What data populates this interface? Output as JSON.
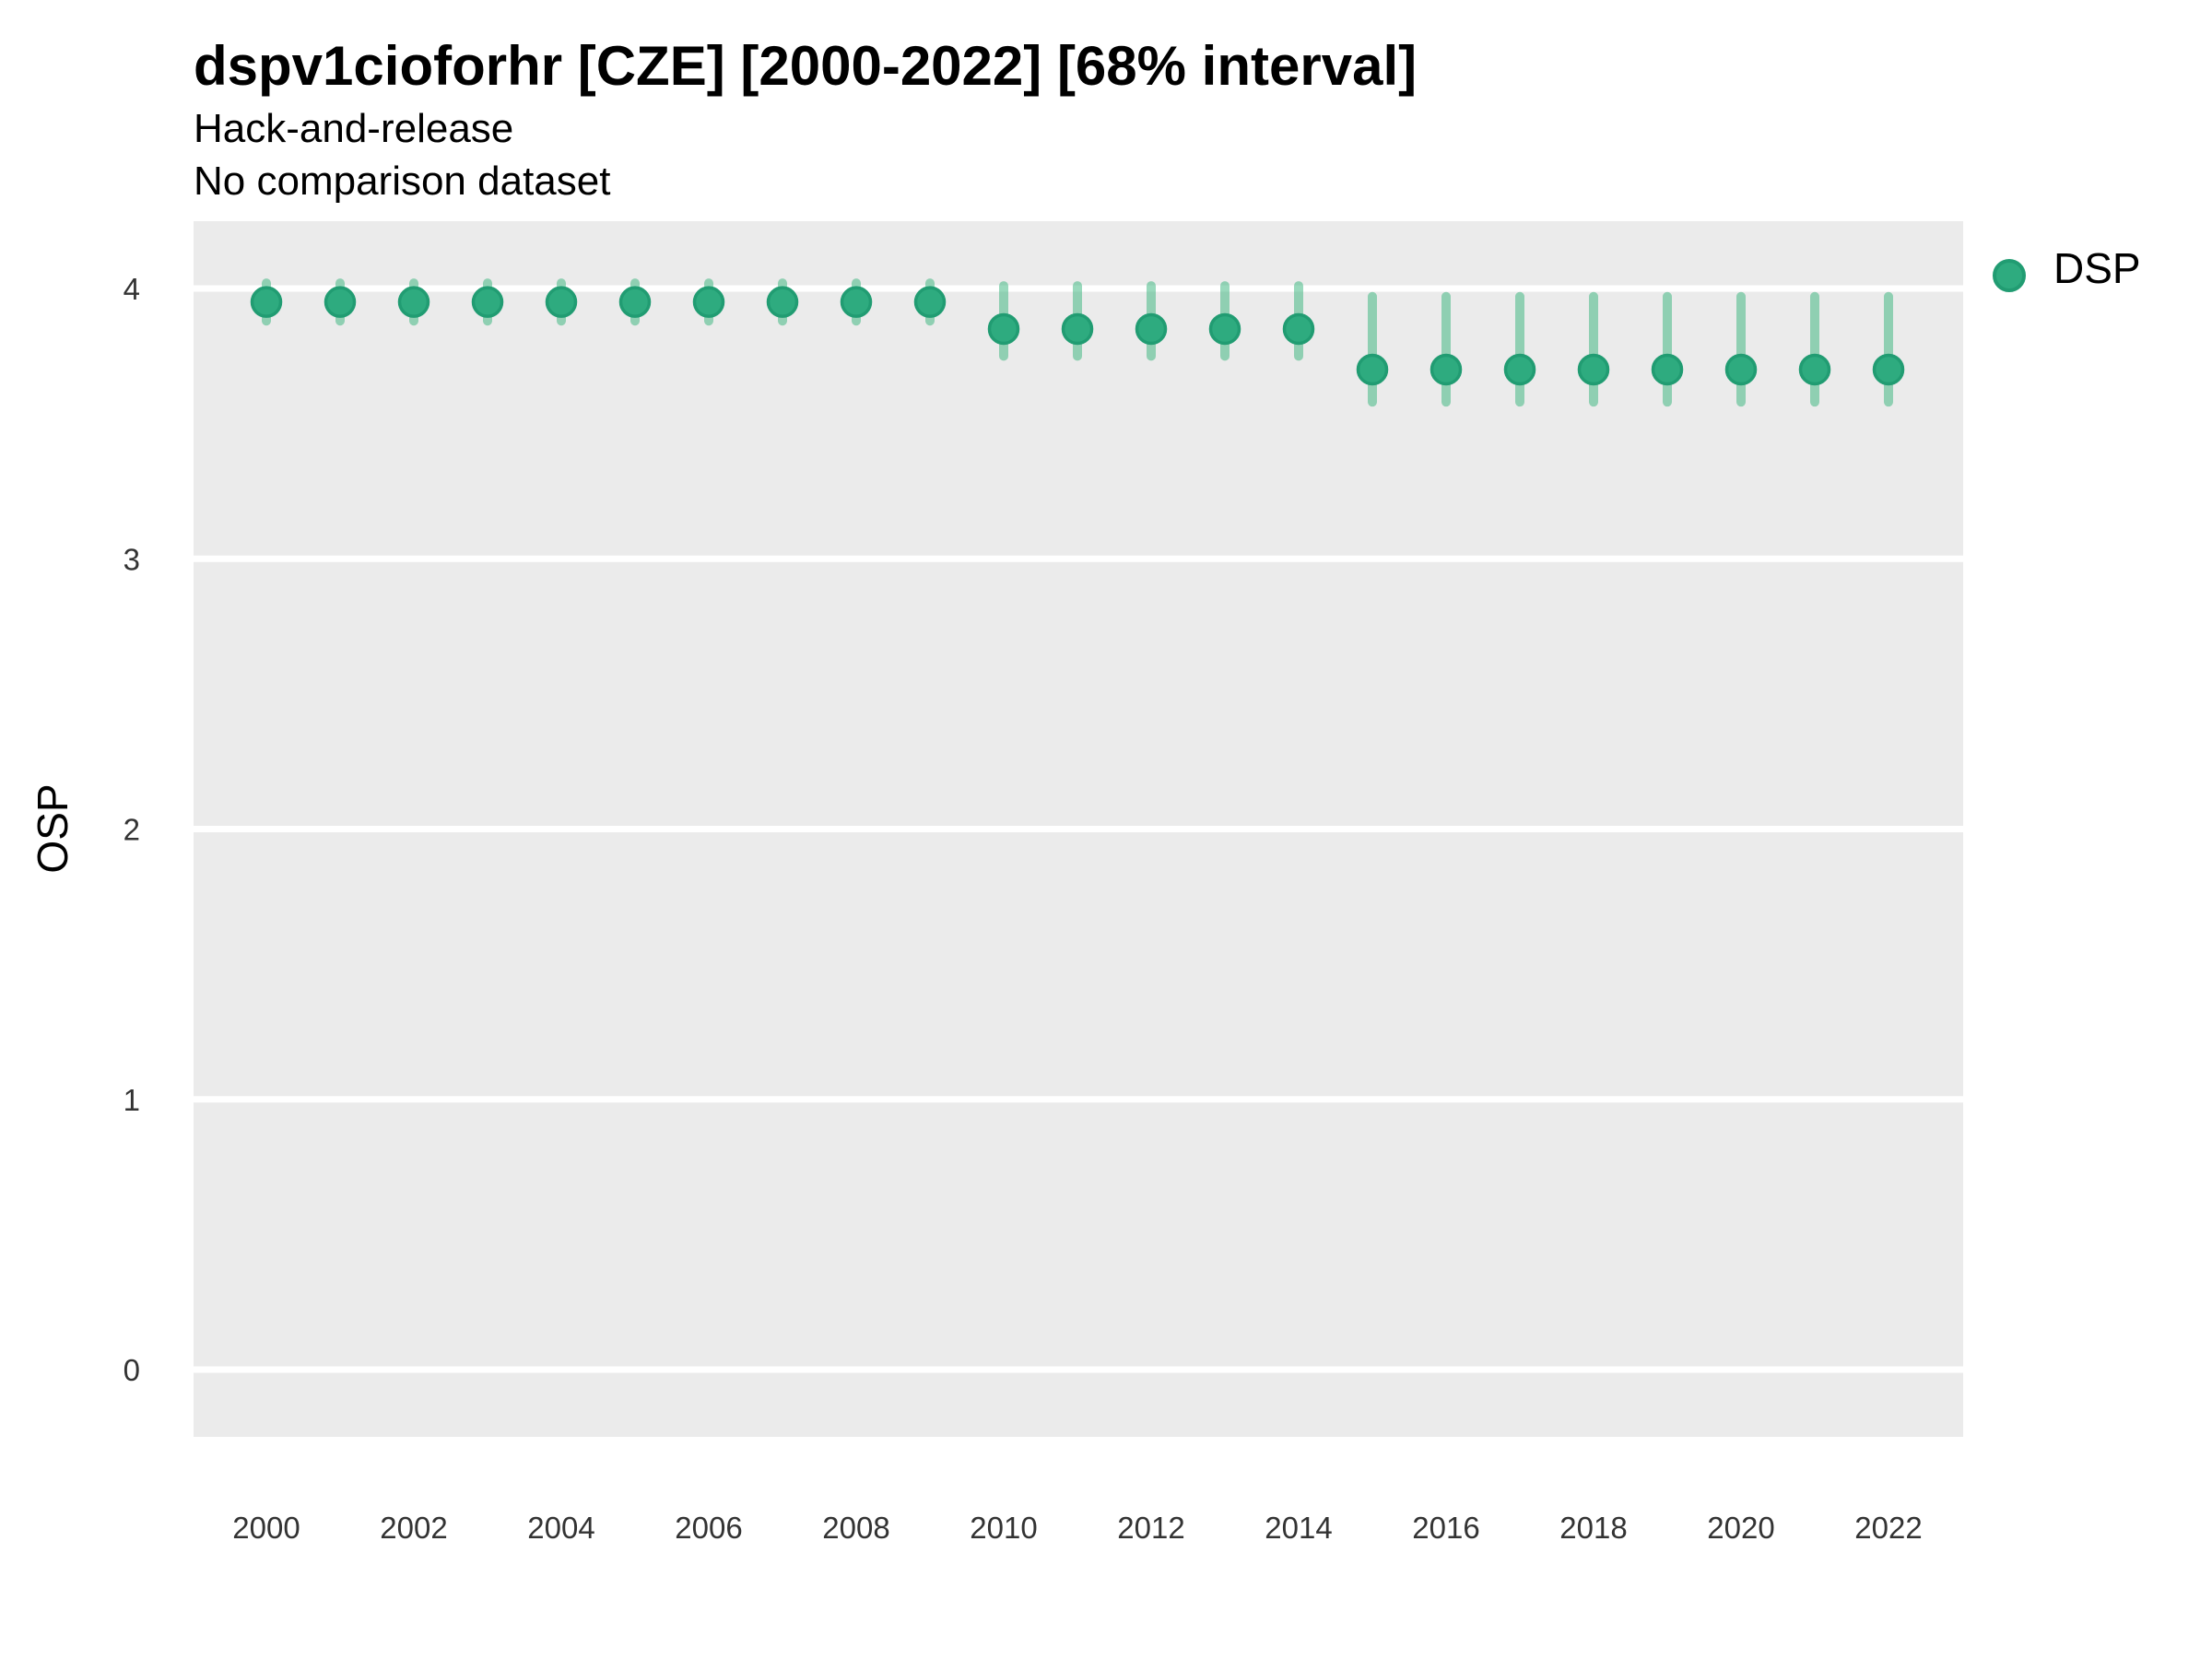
{
  "chart_data": {
    "type": "scatter",
    "variant": "pointrange-interval",
    "title": "dspv1cioforhr [CZE] [2000-2022] [68% interval]",
    "subtitle_lines": [
      "Hack-and-release",
      "No comparison dataset"
    ],
    "ylabel": "OSP",
    "xlabel": "",
    "ylim": [
      -0.25,
      4.25
    ],
    "xlim": [
      1999,
      2023
    ],
    "y_ticks": [
      0,
      1,
      2,
      3,
      4
    ],
    "x_ticks": [
      2000,
      2002,
      2004,
      2006,
      2008,
      2010,
      2012,
      2014,
      2016,
      2018,
      2020,
      2022
    ],
    "grid": "horizontal major gridlines only, white on gray panel",
    "legend_position": "right",
    "panel_bg": "#EBEBEB",
    "gridline_color": "#FFFFFF",
    "tick_label_color": "#333333",
    "series": [
      {
        "name": "DSP",
        "point_fill": "#2EAB7F",
        "point_stroke": "#219C72",
        "interval_color": "rgba(51,179,121,0.5)",
        "x": [
          2000,
          2001,
          2002,
          2003,
          2004,
          2005,
          2006,
          2007,
          2008,
          2009,
          2010,
          2011,
          2012,
          2013,
          2014,
          2015,
          2016,
          2017,
          2018,
          2019,
          2020,
          2021,
          2022
        ],
        "y": [
          3.95,
          3.95,
          3.95,
          3.95,
          3.95,
          3.95,
          3.95,
          3.95,
          3.95,
          3.95,
          3.85,
          3.85,
          3.85,
          3.85,
          3.85,
          3.7,
          3.7,
          3.7,
          3.7,
          3.7,
          3.7,
          3.7,
          3.7
        ],
        "y_low": [
          3.88,
          3.88,
          3.88,
          3.88,
          3.88,
          3.88,
          3.88,
          3.88,
          3.88,
          3.88,
          3.75,
          3.75,
          3.75,
          3.75,
          3.75,
          3.58,
          3.58,
          3.58,
          3.58,
          3.58,
          3.58,
          3.58,
          3.58
        ],
        "y_high": [
          4.02,
          4.02,
          4.02,
          4.02,
          4.02,
          4.02,
          4.02,
          4.02,
          4.02,
          4.02,
          4.01,
          4.01,
          4.01,
          4.01,
          4.01,
          3.97,
          3.97,
          3.97,
          3.97,
          3.97,
          3.97,
          3.97,
          3.97
        ]
      }
    ]
  }
}
